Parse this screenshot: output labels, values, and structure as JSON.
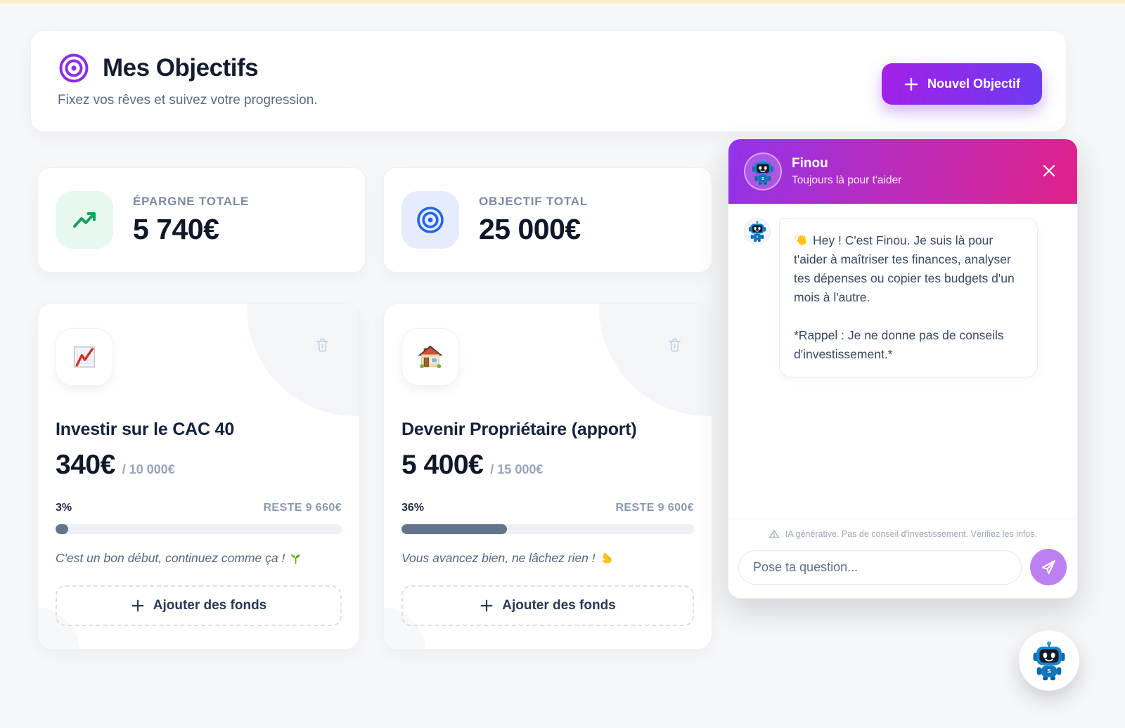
{
  "header": {
    "icon": "target-purple",
    "title": "Mes Objectifs",
    "subtitle": "Fixez vos rêves et suivez votre progression.",
    "new_goal_button": {
      "label": "Nouvel Objectif",
      "icon": "plus"
    }
  },
  "stats": [
    {
      "icon": "trending-up",
      "label": "ÉPARGNE TOTALE",
      "value": "5 740€"
    },
    {
      "icon": "target-blue",
      "label": "OBJECTIF TOTAL",
      "value": "25 000€"
    }
  ],
  "goals": [
    {
      "icon": "chart-increasing",
      "title": "Investir sur le CAC 40",
      "current": "340€",
      "target": "/ 10 000€",
      "percent_label": "3%",
      "percent": 3,
      "remaining_label": "RESTE 9 660€",
      "motivation": "C'est un bon début, continuez comme ça !",
      "motivation_icon": "seedling",
      "add_funds_label": "Ajouter des fonds"
    },
    {
      "icon": "house",
      "title": "Devenir Propriétaire (apport)",
      "current": "5 400€",
      "target": "/ 15 000€",
      "percent_label": "36%",
      "percent": 36,
      "remaining_label": "RESTE 9 600€",
      "motivation": "Vous avancez bien, ne lâchez rien !",
      "motivation_icon": "biceps",
      "add_funds_label": "Ajouter des fonds"
    }
  ],
  "chat": {
    "name": "Finou",
    "tagline": "Toujours là pour t'aider",
    "avatar_icon": "robot",
    "message": {
      "lead_icon": "waving-hand",
      "paragraphs": [
        "Hey ! C'est Finou. Je suis là pour t'aider à maîtriser tes finances, analyser tes dépenses ou copier tes budgets d'un mois à l'autre.",
        "*Rappel : Je ne donne pas de conseils d'investissement.*"
      ]
    },
    "disclaimer": "IA générative. Pas de conseil d'investissement. Vérifiez les infos.",
    "input_placeholder": "Pose ta question...",
    "send_icon": "paper-plane"
  },
  "colors": {
    "accent_purple": "#9333ea",
    "accent_pink": "#e0218a",
    "button_gradient_start": "#a321e8",
    "button_gradient_end": "#6d3bf0",
    "progress_fill": "#64748b",
    "stat_green": "#17a15e",
    "stat_blue": "#2563eb"
  }
}
